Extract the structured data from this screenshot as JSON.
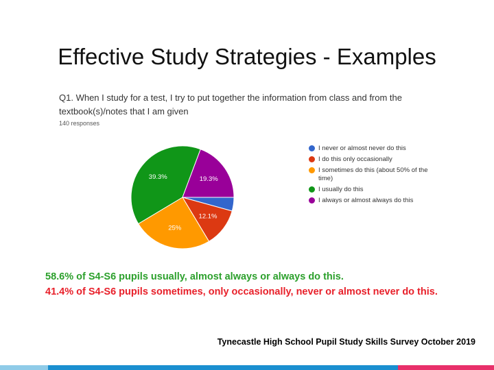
{
  "slide": {
    "title": "Effective Study Strategies - Examples",
    "summary": [
      "58.6% of S4-S6 pupils usually, almost always or always do this.",
      "41.4% of S4-S6 pupils sometimes, only occasionally,  never or almost never do this."
    ],
    "footer": "Tynecastle High School Pupil Study Skills Survey October 2019"
  },
  "chart_data": {
    "type": "pie",
    "title": "Q1.  When I study for a test, I try to put together the information from class and from the textbook(s)/notes that I am given",
    "subtitle": "140 responses",
    "categories": [
      "I never or almost never do this",
      "I do this only occasionally",
      "I sometimes do this (about 50% of the time)",
      "I usually do this",
      "I always or almost always do this"
    ],
    "values": [
      4.3,
      12.1,
      25,
      39.3,
      19.3
    ],
    "value_labels": [
      null,
      "12.1%",
      "25%",
      "39.3%",
      "19.3%"
    ],
    "colors": [
      "#3366cc",
      "#dc3912",
      "#ff9900",
      "#109618",
      "#990099"
    ],
    "legend": "right"
  }
}
